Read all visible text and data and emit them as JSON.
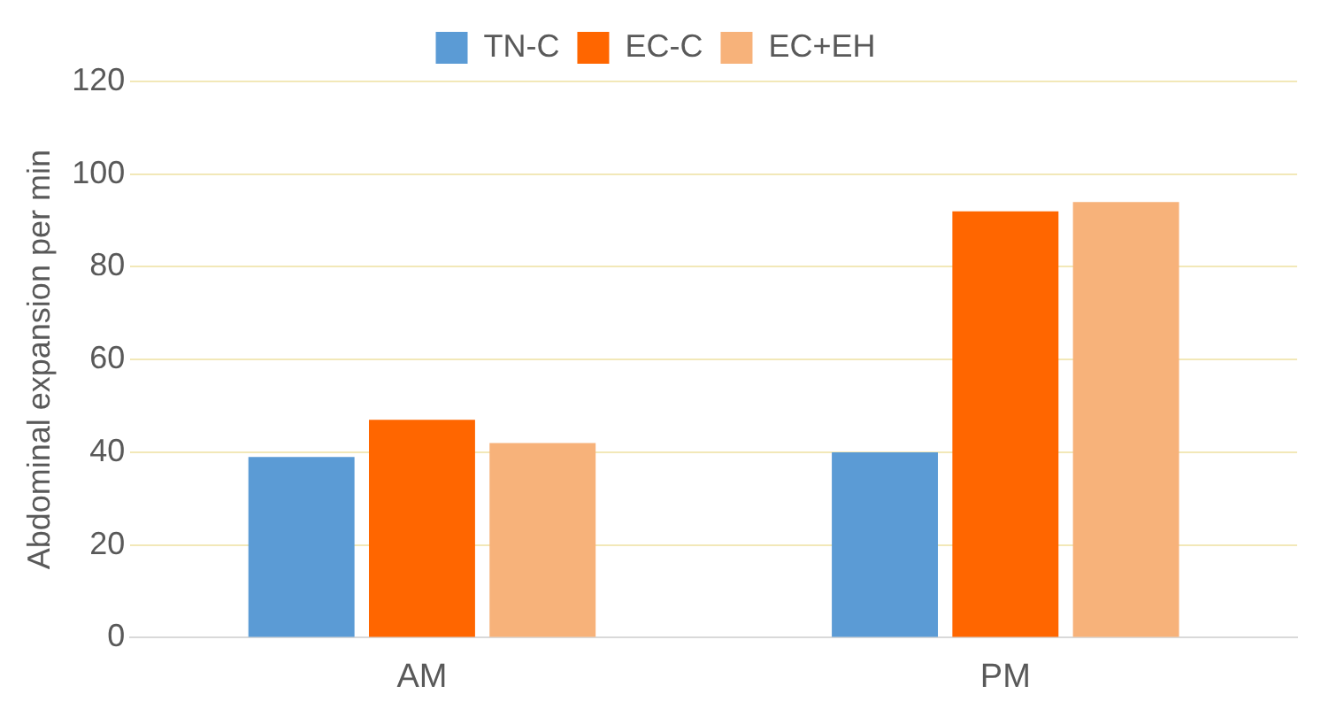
{
  "chart_data": {
    "type": "bar",
    "ylabel": "Abdominal expansion per min",
    "categories": [
      "AM",
      "PM"
    ],
    "series": [
      {
        "name": "TN-C",
        "color": "#5b9bd5",
        "values": [
          39,
          40
        ]
      },
      {
        "name": "EC-C",
        "color": "#ff6600",
        "values": [
          47,
          92
        ]
      },
      {
        "name": "EC+EH",
        "color": "#f7b27a",
        "values": [
          42,
          94
        ]
      }
    ],
    "ylim": [
      0,
      120
    ],
    "yticks": [
      0,
      20,
      40,
      60,
      80,
      100,
      120
    ],
    "grid": "y",
    "legend": "top"
  }
}
